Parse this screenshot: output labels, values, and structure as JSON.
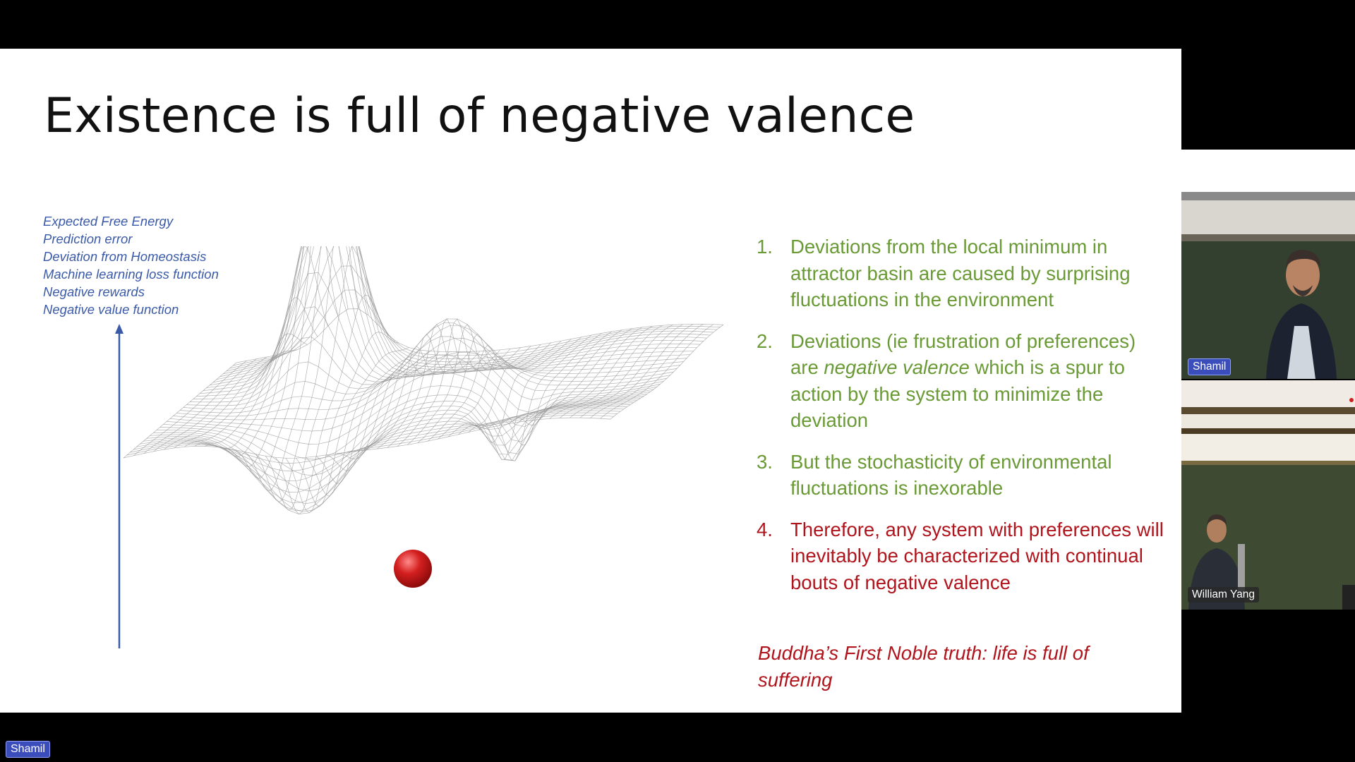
{
  "slide": {
    "title": "Existence is full of negative valence",
    "axis_labels": [
      "Expected Free Energy",
      "Prediction error",
      "Deviation from Homeostasis",
      "Machine learning loss function",
      "Negative rewards",
      "Negative value function"
    ],
    "points": [
      {
        "num": "1.",
        "text": "Deviations from the local minimum in attractor basin  are caused by surprising fluctuations in the environment",
        "color": "#6a9a35"
      },
      {
        "num": "2.",
        "text_before": "Deviations (ie frustration of preferences) are ",
        "text_em": "negative valence",
        "text_after": " which is a spur to action by the system to minimize the deviation",
        "color": "#6a9a35"
      },
      {
        "num": "3.",
        "text": "But the stochasticity of environmental fluctuations is inexorable",
        "color": "#6a9a35"
      },
      {
        "num": "4.",
        "text": "Therefore, any system with preferences will inevitably be characterized with continual bouts of negative valence",
        "color": "#b0141c"
      }
    ],
    "conclusion": "Buddha’s First Noble truth: life is full of suffering"
  },
  "participants": [
    {
      "name": "Shamil"
    },
    {
      "name": "William Yang"
    }
  ],
  "active_speaker_tag": "Shamil",
  "colors": {
    "axis_blue": "#3a5aa8",
    "green": "#6a9a35",
    "red": "#b0141c",
    "ball": "#d41f1f"
  }
}
